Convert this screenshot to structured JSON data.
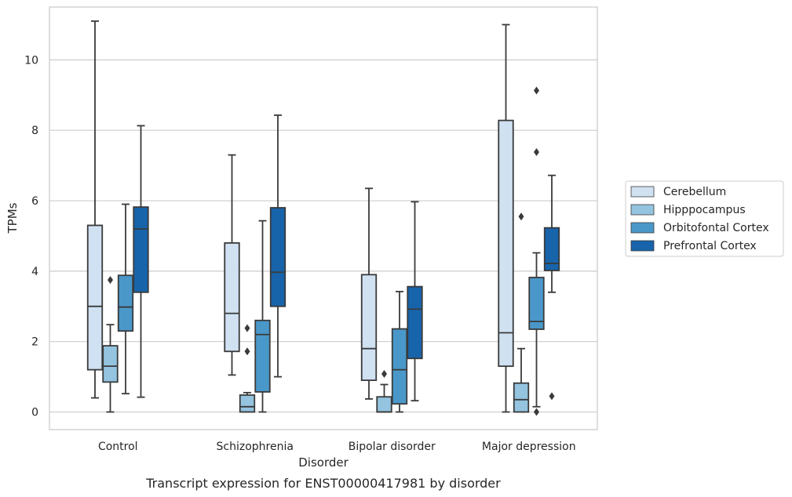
{
  "chart_data": {
    "type": "box",
    "xlabel": "Disorder",
    "ylabel": "TPMs",
    "caption": "Transcript expression for ENST00000417981 by disorder",
    "ylim": [
      -0.5,
      11.5
    ],
    "yticks": [
      "0",
      "2",
      "4",
      "6",
      "8",
      "10"
    ],
    "categories": [
      "Control",
      "Schizophrenia",
      "Bipolar disorder",
      "Major depression"
    ],
    "grid": "horizontal",
    "legend_position": "right",
    "series": [
      {
        "name": "Cerebellum",
        "color": "#d0e1f2",
        "boxes": [
          {
            "whislo": 0.4,
            "q1": 1.2,
            "med": 3.0,
            "q3": 5.3,
            "whishi": 11.1,
            "fliers": []
          },
          {
            "whislo": 1.05,
            "q1": 1.72,
            "med": 2.8,
            "q3": 4.8,
            "whishi": 7.3,
            "fliers": []
          },
          {
            "whislo": 0.37,
            "q1": 0.9,
            "med": 1.8,
            "q3": 3.9,
            "whishi": 6.35,
            "fliers": []
          },
          {
            "whislo": 0.0,
            "q1": 1.3,
            "med": 2.25,
            "q3": 8.28,
            "whishi": 11.0,
            "fliers": []
          }
        ]
      },
      {
        "name": "Hipppocampus",
        "color": "#94c4df",
        "boxes": [
          {
            "whislo": 0.0,
            "q1": 0.85,
            "med": 1.3,
            "q3": 1.88,
            "whishi": 2.48,
            "fliers": [
              3.75
            ]
          },
          {
            "whislo": 0.0,
            "q1": 0.0,
            "med": 0.15,
            "q3": 0.48,
            "whishi": 0.55,
            "fliers": [
              1.72,
              2.38
            ]
          },
          {
            "whislo": 0.0,
            "q1": 0.0,
            "med": 0.0,
            "q3": 0.43,
            "whishi": 0.78,
            "fliers": [
              1.08
            ]
          },
          {
            "whislo": 0.0,
            "q1": 0.0,
            "med": 0.35,
            "q3": 0.82,
            "whishi": 1.8,
            "fliers": [
              5.55
            ]
          }
        ]
      },
      {
        "name": "Orbitofontal Cortex",
        "color": "#4a98c9",
        "boxes": [
          {
            "whislo": 0.52,
            "q1": 2.3,
            "med": 2.98,
            "q3": 3.88,
            "whishi": 5.9,
            "fliers": []
          },
          {
            "whislo": 0.0,
            "q1": 0.57,
            "med": 2.2,
            "q3": 2.6,
            "whishi": 5.43,
            "fliers": []
          },
          {
            "whislo": 0.0,
            "q1": 0.23,
            "med": 1.2,
            "q3": 2.36,
            "whishi": 3.42,
            "fliers": []
          },
          {
            "whislo": 0.15,
            "q1": 2.35,
            "med": 2.57,
            "q3": 3.82,
            "whishi": 4.52,
            "fliers": [
              0.0,
              7.38,
              9.13
            ]
          }
        ]
      },
      {
        "name": "Prefrontal Cortex",
        "color": "#1764ab",
        "boxes": [
          {
            "whislo": 0.42,
            "q1": 3.4,
            "med": 5.2,
            "q3": 5.82,
            "whishi": 8.13,
            "fliers": []
          },
          {
            "whislo": 1.0,
            "q1": 3.0,
            "med": 3.97,
            "q3": 5.8,
            "whishi": 8.43,
            "fliers": []
          },
          {
            "whislo": 0.32,
            "q1": 1.52,
            "med": 2.92,
            "q3": 3.56,
            "whishi": 5.97,
            "fliers": []
          },
          {
            "whislo": 3.4,
            "q1": 4.02,
            "med": 4.22,
            "q3": 5.23,
            "whishi": 6.72,
            "fliers": [
              0.45
            ]
          }
        ]
      }
    ]
  }
}
